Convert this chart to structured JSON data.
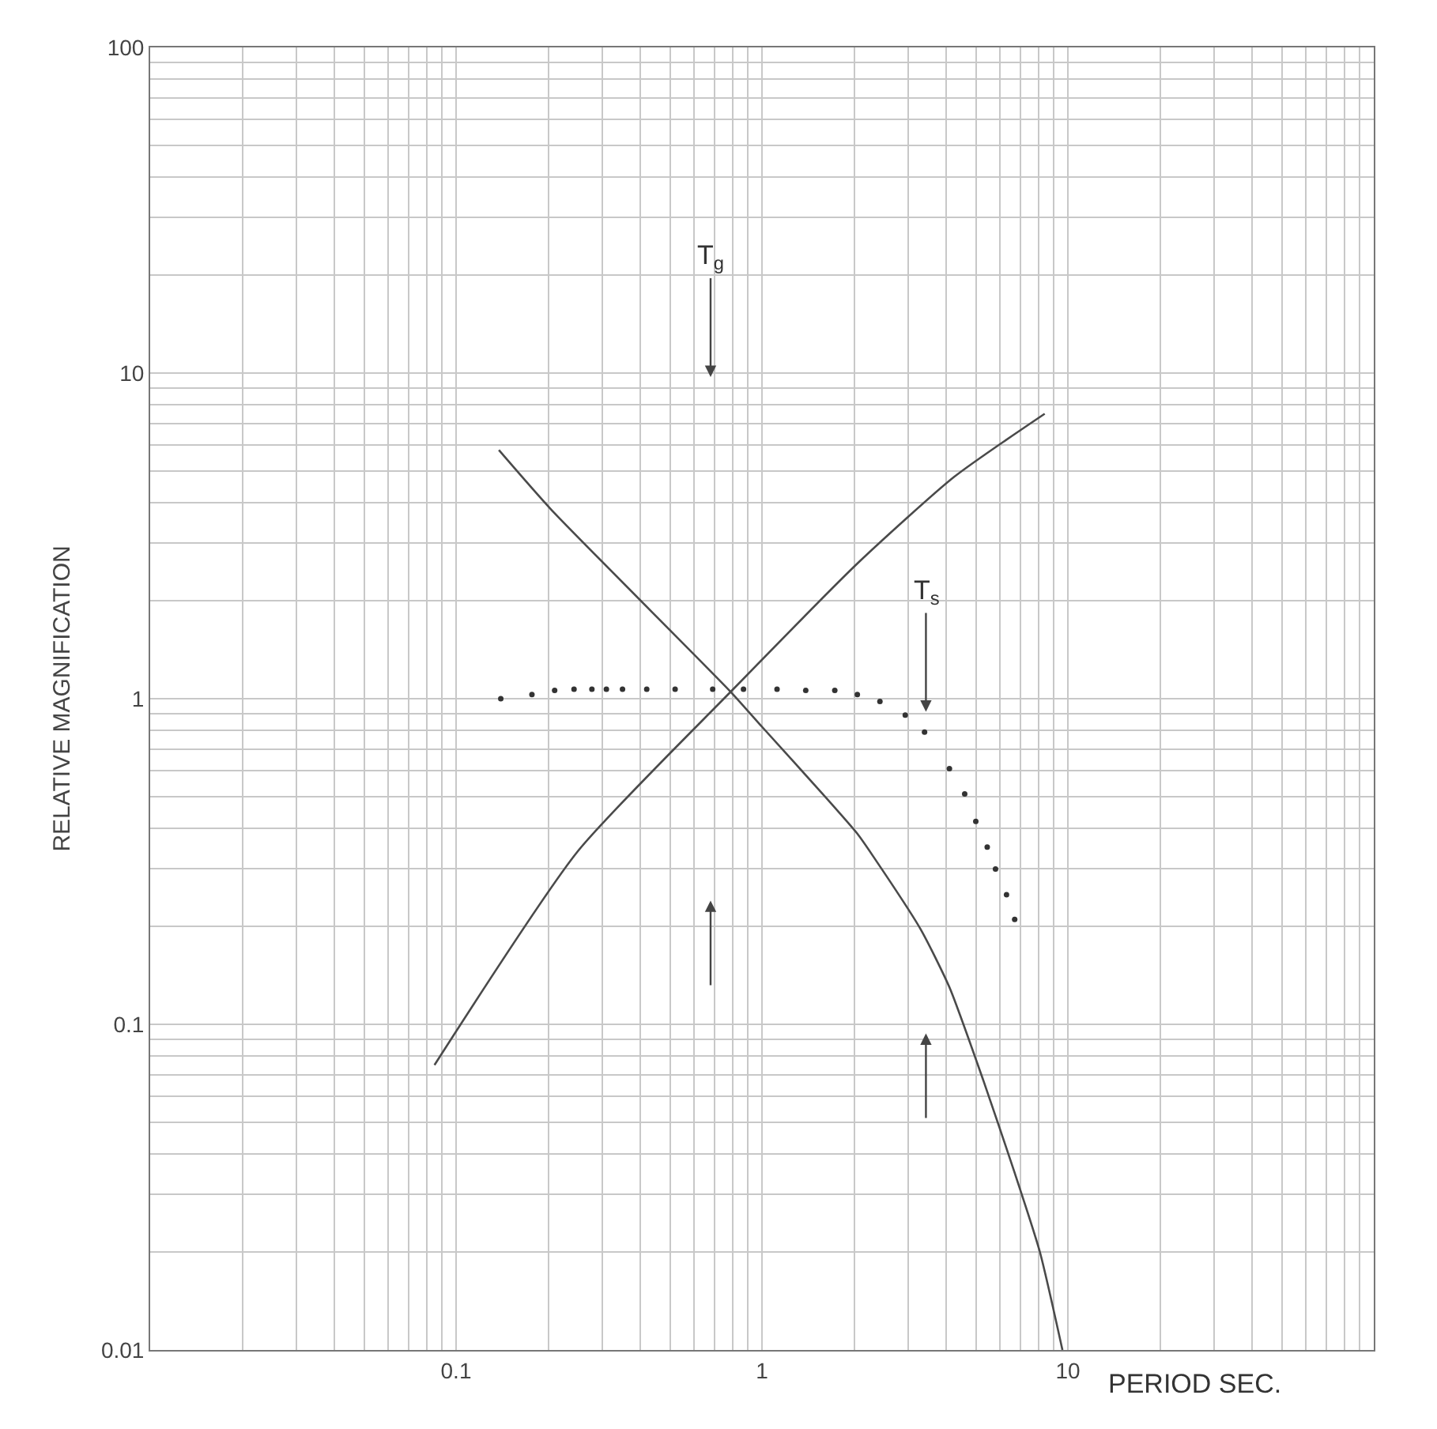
{
  "chart_data": {
    "type": "line",
    "xlabel": "PERIOD SEC.",
    "ylabel": "RELATIVE MAGNIFICATION",
    "log": "xy",
    "grid": true,
    "xlim": [
      0.01,
      100
    ],
    "ylim": [
      0.01,
      100
    ],
    "xticks": [
      {
        "value": 0.01,
        "label": null
      },
      {
        "value": 0.02,
        "label": null
      },
      {
        "value": 0.03,
        "label": null
      },
      {
        "value": 0.04,
        "label": null
      },
      {
        "value": 0.05,
        "label": null
      },
      {
        "value": 0.06,
        "label": null
      },
      {
        "value": 0.07,
        "label": null
      },
      {
        "value": 0.08,
        "label": null
      },
      {
        "value": 0.09,
        "label": null
      },
      0.1,
      {
        "value": 0.2,
        "label": null
      },
      {
        "value": 0.3,
        "label": null
      },
      {
        "value": 0.4,
        "label": null
      },
      {
        "value": 0.5,
        "label": null
      },
      {
        "value": 0.6,
        "label": null
      },
      {
        "value": 0.7,
        "label": null
      },
      {
        "value": 0.8,
        "label": null
      },
      {
        "value": 0.9,
        "label": null
      },
      1,
      {
        "value": 2,
        "label": null
      },
      {
        "value": 3,
        "label": null
      },
      {
        "value": 4,
        "label": null
      },
      {
        "value": 5,
        "label": null
      },
      {
        "value": 6,
        "label": null
      },
      {
        "value": 7,
        "label": null
      },
      {
        "value": 8,
        "label": null
      },
      {
        "value": 9,
        "label": null
      },
      10,
      {
        "value": 20,
        "label": null
      },
      {
        "value": 30,
        "label": null
      },
      {
        "value": 40,
        "label": null
      },
      {
        "value": 50,
        "label": null
      },
      {
        "value": 60,
        "label": null
      },
      {
        "value": 70,
        "label": null
      },
      {
        "value": 80,
        "label": null
      },
      {
        "value": 90,
        "label": null
      },
      {
        "value": 100,
        "label": null
      }
    ],
    "yticks": [
      0.01,
      {
        "value": 0.02,
        "label": null
      },
      {
        "value": 0.03,
        "label": null
      },
      {
        "value": 0.04,
        "label": null
      },
      {
        "value": 0.05,
        "label": null
      },
      {
        "value": 0.06,
        "label": null
      },
      {
        "value": 0.07,
        "label": null
      },
      {
        "value": 0.08,
        "label": null
      },
      {
        "value": 0.09,
        "label": null
      },
      0.1,
      {
        "value": 0.2,
        "label": null
      },
      {
        "value": 0.3,
        "label": null
      },
      {
        "value": 0.4,
        "label": null
      },
      {
        "value": 0.5,
        "label": null
      },
      {
        "value": 0.6,
        "label": null
      },
      {
        "value": 0.7,
        "label": null
      },
      {
        "value": 0.8,
        "label": null
      },
      {
        "value": 0.9,
        "label": null
      },
      1,
      {
        "value": 2,
        "label": null
      },
      {
        "value": 3,
        "label": null
      },
      {
        "value": 4,
        "label": null
      },
      {
        "value": 5,
        "label": null
      },
      {
        "value": 6,
        "label": null
      },
      {
        "value": 7,
        "label": null
      },
      {
        "value": 8,
        "label": null
      },
      {
        "value": 9,
        "label": null
      },
      10,
      {
        "value": 20,
        "label": null
      },
      {
        "value": 30,
        "label": null
      },
      {
        "value": 40,
        "label": null
      },
      {
        "value": 50,
        "label": null
      },
      {
        "value": 60,
        "label": null
      },
      {
        "value": 70,
        "label": null
      },
      {
        "value": 80,
        "label": null
      },
      {
        "value": 90,
        "label": null
      },
      100
    ],
    "annotations": [
      "T$_{g}$",
      "T$_{s}$"
    ],
    "series": [
      {
        "marker": "none",
        "color": "#4a4a4a",
        "x": [
          0.085,
          0.25,
          0.79,
          2.05,
          4.25,
          8.4
        ],
        "values": [
          0.075,
          0.34,
          1.05,
          2.6,
          4.8,
          7.5
        ]
      },
      {
        "marker": "none",
        "color": "#4a4a4a",
        "x": [
          0.138,
          0.205,
          0.79,
          1.0,
          1.64,
          2.05,
          2.3,
          3.3,
          4.1,
          5.3,
          6.7,
          8.1,
          9.6
        ],
        "values": [
          5.8,
          3.8,
          1.05,
          0.82,
          0.49,
          0.385,
          0.33,
          0.196,
          0.13,
          0.067,
          0.035,
          0.02,
          0.01
        ]
      },
      {
        "type": "scatter",
        "marker": "circle",
        "color": "#333333",
        "x": [
          0.14,
          0.177,
          0.21,
          0.243,
          0.278,
          0.31,
          0.35,
          0.42,
          0.52,
          0.69,
          0.87,
          1.12,
          1.39,
          1.73,
          2.05,
          2.43,
          2.94,
          3.4,
          4.1,
          4.6,
          5.0,
          5.45,
          5.8,
          6.3,
          6.7
        ],
        "values": [
          1.0,
          1.03,
          1.06,
          1.07,
          1.07,
          1.07,
          1.07,
          1.07,
          1.07,
          1.07,
          1.07,
          1.07,
          1.06,
          1.06,
          1.03,
          0.98,
          0.89,
          0.79,
          0.61,
          0.51,
          0.42,
          0.35,
          0.3,
          0.25,
          0.21
        ]
      }
    ]
  }
}
